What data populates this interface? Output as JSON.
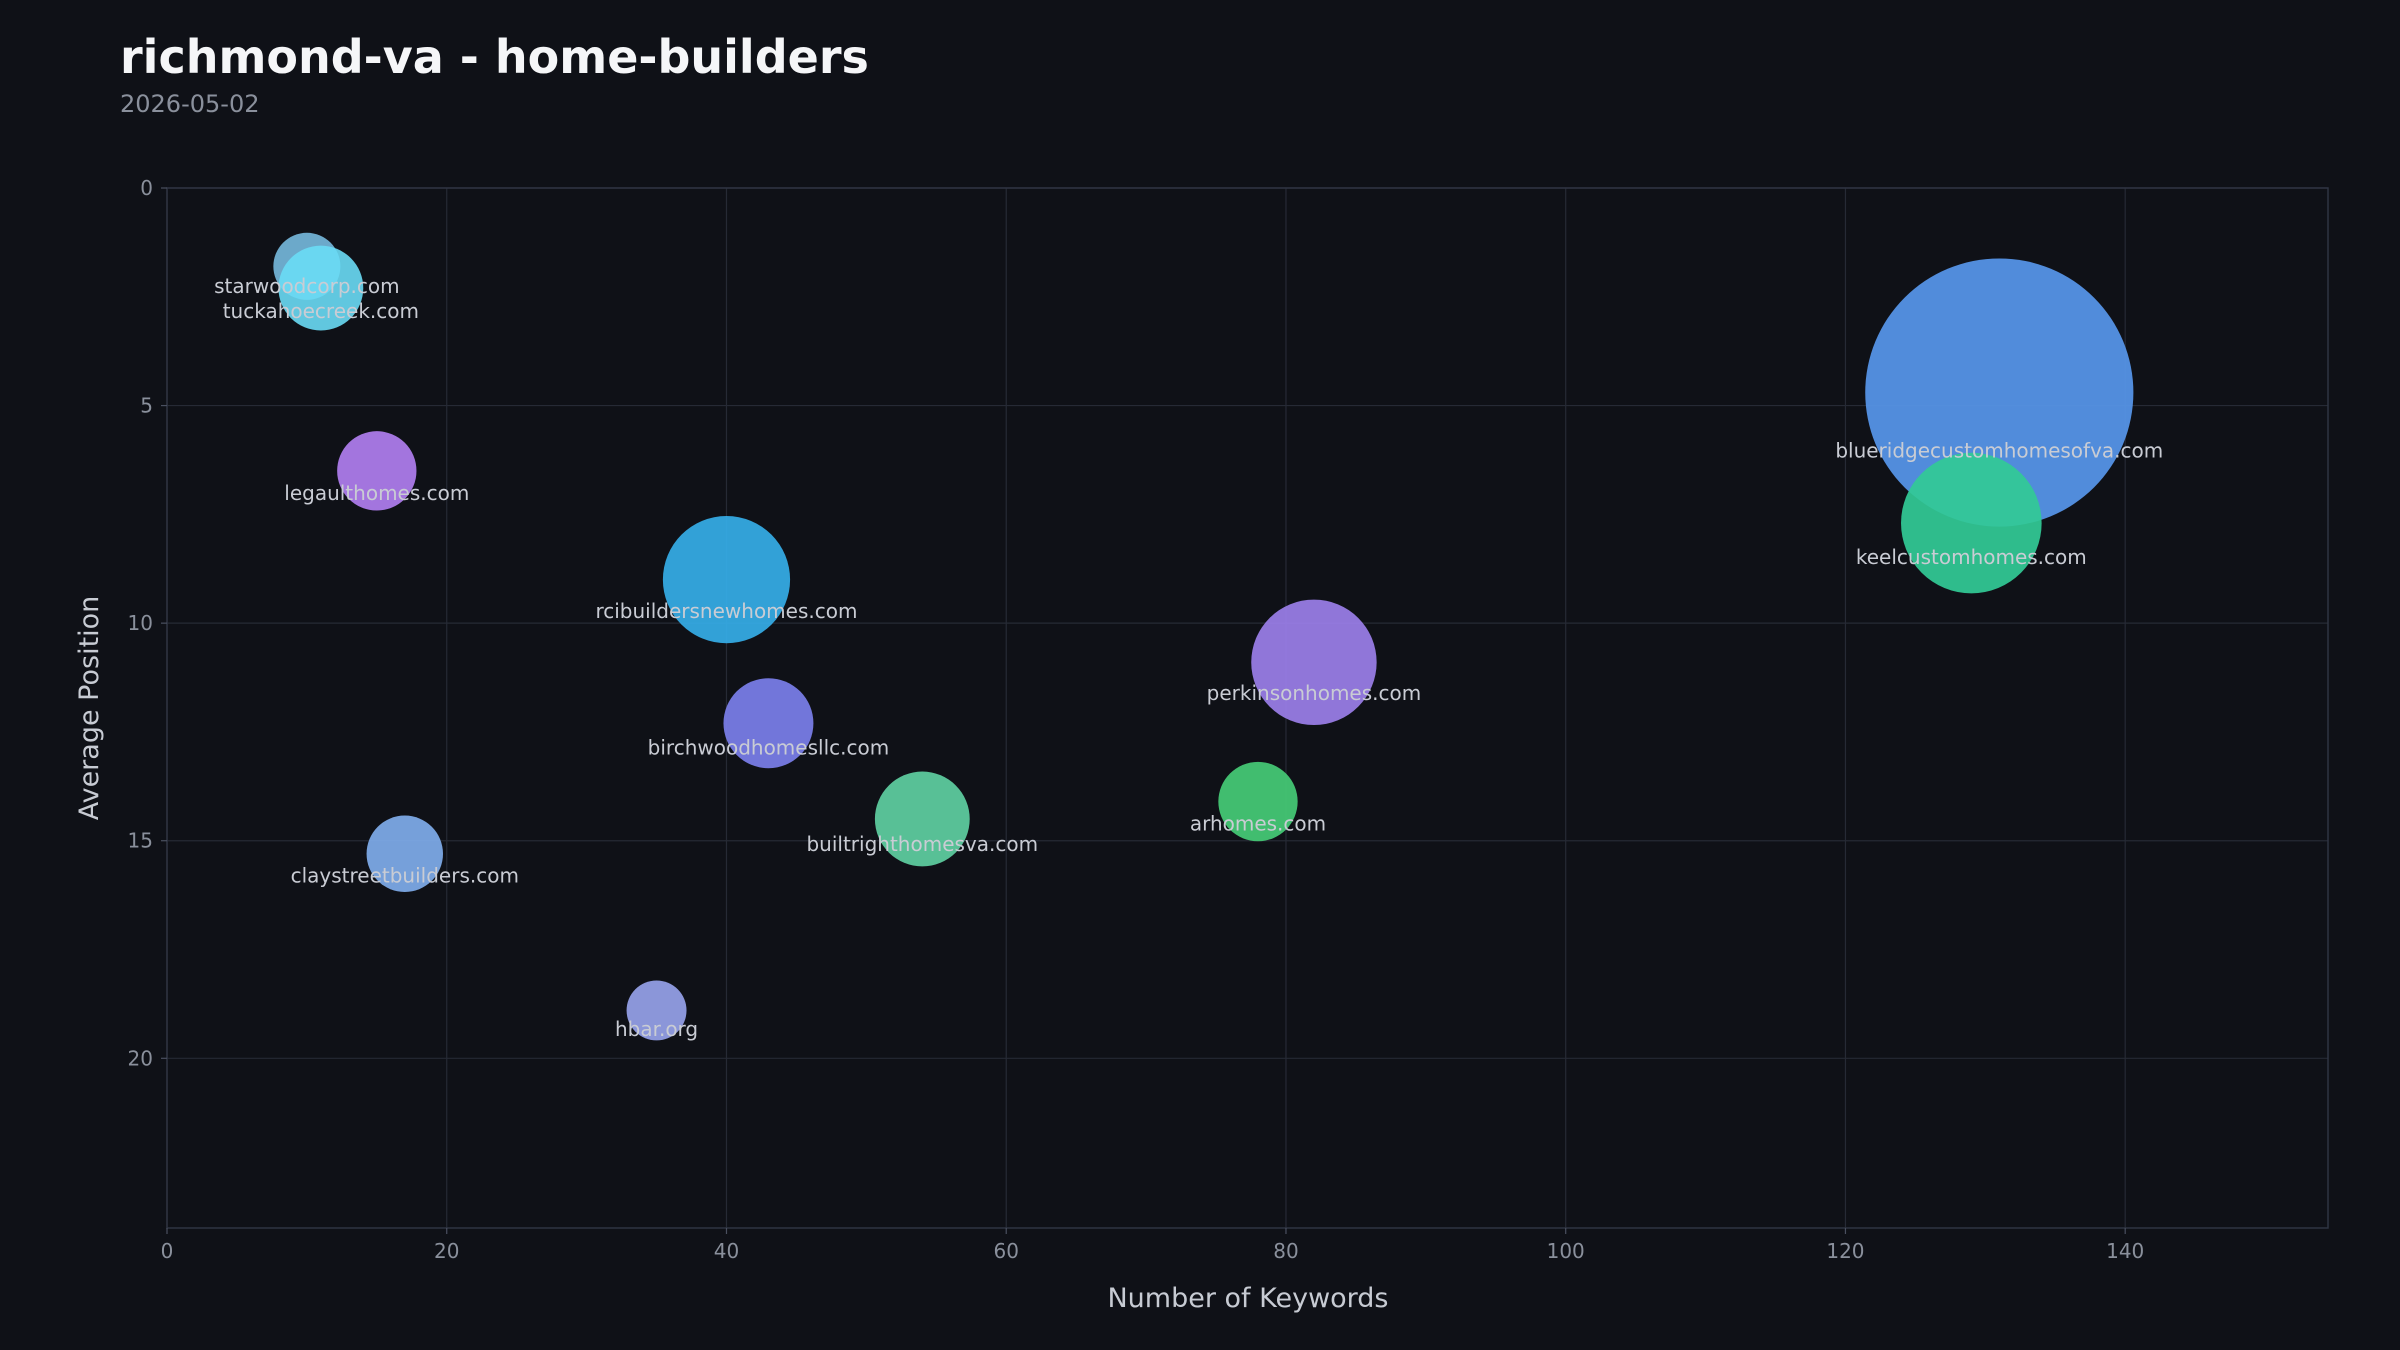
{
  "header": {
    "title": "richmond-va - home-builders",
    "date": "2026-05-02"
  },
  "chart_data": {
    "type": "scatter",
    "subtype": "bubble",
    "title": "richmond-va - home-builders",
    "subtitle": "2026-05-02",
    "xlabel": "Number of Keywords",
    "ylabel": "Average Position",
    "xlim": [
      0,
      154.5
    ],
    "ylim": [
      0,
      23.9
    ],
    "y_inverted": true,
    "xticks": [
      0,
      20,
      40,
      60,
      80,
      100,
      120,
      140
    ],
    "yticks": [
      0,
      5,
      10,
      15,
      20
    ],
    "grid": true,
    "size_unit": "relative",
    "points": [
      {
        "label": "starwoodcorp.com",
        "x": 10,
        "y": 1.8,
        "size": 10,
        "color": "#7cc4ea",
        "opacity": 0.85
      },
      {
        "label": "tuckahoecreek.com",
        "x": 11,
        "y": 2.3,
        "size": 16,
        "color": "#6adcf5",
        "opacity": 0.9
      },
      {
        "label": "legaulthomes.com",
        "x": 15,
        "y": 6.5,
        "size": 14,
        "color": "#b07ef0",
        "opacity": 0.92
      },
      {
        "label": "rcibuildersnewhomes.com",
        "x": 40,
        "y": 9.0,
        "size": 36,
        "color": "#35aee8",
        "opacity": 0.92
      },
      {
        "label": "birchwoodhomesllc.com",
        "x": 43,
        "y": 12.3,
        "size": 18,
        "color": "#7b7fec",
        "opacity": 0.92
      },
      {
        "label": "builtrighthomesva.com",
        "x": 54,
        "y": 14.5,
        "size": 20,
        "color": "#5ecfa2",
        "opacity": 0.92
      },
      {
        "label": "claystreetbuilders.com",
        "x": 17,
        "y": 15.3,
        "size": 13,
        "color": "#7fadeb",
        "opacity": 0.92
      },
      {
        "label": "hbar.org",
        "x": 35,
        "y": 18.9,
        "size": 8,
        "color": "#96a2ea",
        "opacity": 0.92
      },
      {
        "label": "arhomes.com",
        "x": 78,
        "y": 14.1,
        "size": 14,
        "color": "#44c774",
        "opacity": 0.95
      },
      {
        "label": "perkinsonhomes.com",
        "x": 82,
        "y": 10.9,
        "size": 35,
        "color": "#9b7fea",
        "opacity": 0.92
      },
      {
        "label": "blueridgecustomhomesofva.com",
        "x": 131,
        "y": 4.7,
        "size": 160,
        "color": "#5594e6",
        "opacity": 0.95
      },
      {
        "label": "keelcustomhomes.com",
        "x": 129,
        "y": 7.7,
        "size": 44,
        "color": "#32c996",
        "opacity": 0.93
      }
    ]
  },
  "colors": {
    "background": "#0f1117",
    "plot_border": "#2f3442",
    "grid": "#262a35"
  }
}
